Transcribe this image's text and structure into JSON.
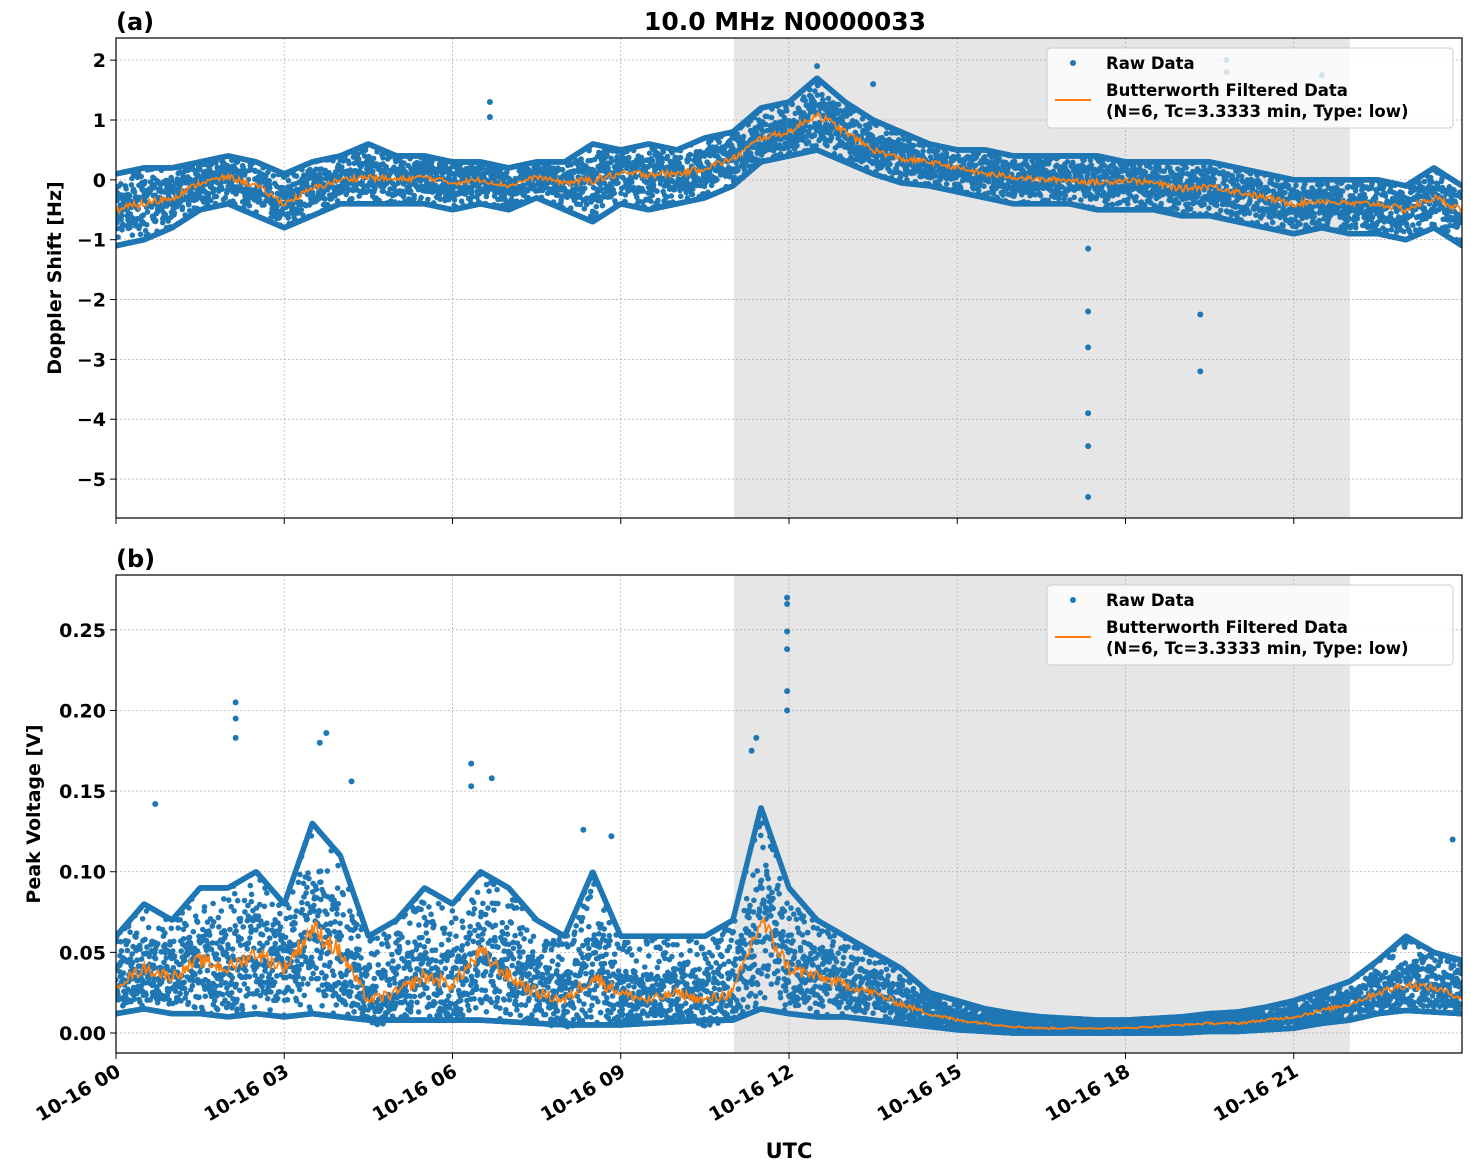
{
  "title": "10.0 MHz N0000033",
  "colors": {
    "raw": "#1f77b4",
    "filtered": "#ff7f0e",
    "shade": "#e6e6e6",
    "grid": "#b0b0b0"
  },
  "legend": {
    "placement": "upper-right",
    "raw": "Raw Data",
    "filtered_line1": "Butterworth Filtered Data",
    "filtered_line2": "(N=6, Tc=3.3333 min, Type: low)"
  },
  "xlabel": "UTC",
  "x_ticks": [
    "10-16 00",
    "10-16 03",
    "10-16 06",
    "10-16 09",
    "10-16 12",
    "10-16 15",
    "10-16 18",
    "10-16 21"
  ],
  "chart_data": [
    {
      "type": "scatter",
      "panel_label": "(a)",
      "ylabel": "Doppler Shift [Hz]",
      "xlim": [
        "10-16 00:00",
        "10-17 00:00"
      ],
      "ylim": [
        -5.65,
        2.37
      ],
      "y_ticks": [
        "2",
        "1",
        "0",
        "−1",
        "−2",
        "−3",
        "−4",
        "−5"
      ],
      "y_tick_values": [
        2,
        1,
        0,
        -1,
        -2,
        -3,
        -4,
        -5
      ],
      "grid": true,
      "shaded_span": [
        "10-16 11:01",
        "10-16 22:00"
      ],
      "x": [
        "00:00",
        "00:30",
        "01:00",
        "01:30",
        "02:00",
        "02:30",
        "03:00",
        "03:30",
        "04:00",
        "04:30",
        "05:00",
        "05:30",
        "06:00",
        "06:30",
        "07:00",
        "07:30",
        "08:00",
        "08:30",
        "09:00",
        "09:30",
        "10:00",
        "10:30",
        "11:00",
        "11:30",
        "12:00",
        "12:30",
        "13:00",
        "13:30",
        "14:00",
        "14:30",
        "15:00",
        "15:30",
        "16:00",
        "16:30",
        "17:00",
        "17:30",
        "18:00",
        "18:30",
        "19:00",
        "19:30",
        "20:00",
        "20:30",
        "21:00",
        "21:30",
        "22:00",
        "22:30",
        "23:00",
        "23:30",
        "24:00"
      ],
      "series": [
        {
          "name": "Butterworth Filtered Data",
          "kind": "line",
          "values": [
            -0.5,
            -0.4,
            -0.3,
            -0.05,
            0.05,
            -0.1,
            -0.4,
            -0.15,
            0.0,
            0.05,
            0.0,
            0.05,
            -0.05,
            0.0,
            -0.1,
            0.05,
            -0.05,
            0.0,
            0.1,
            0.1,
            0.1,
            0.2,
            0.35,
            0.7,
            0.8,
            1.1,
            0.8,
            0.5,
            0.35,
            0.3,
            0.2,
            0.1,
            0.05,
            0.0,
            0.0,
            -0.05,
            0.0,
            -0.05,
            -0.15,
            -0.1,
            -0.2,
            -0.3,
            -0.4,
            -0.35,
            -0.4,
            -0.4,
            -0.5,
            -0.3,
            -0.5
          ]
        },
        {
          "name": "Raw Data",
          "kind": "scatter-envelope",
          "lower": [
            -1.1,
            -1.0,
            -0.8,
            -0.5,
            -0.4,
            -0.6,
            -0.8,
            -0.6,
            -0.4,
            -0.4,
            -0.4,
            -0.4,
            -0.5,
            -0.4,
            -0.5,
            -0.3,
            -0.5,
            -0.7,
            -0.4,
            -0.5,
            -0.4,
            -0.3,
            -0.1,
            0.3,
            0.4,
            0.5,
            0.3,
            0.1,
            -0.05,
            -0.1,
            -0.2,
            -0.3,
            -0.4,
            -0.4,
            -0.4,
            -0.5,
            -0.5,
            -0.5,
            -0.6,
            -0.6,
            -0.7,
            -0.8,
            -0.9,
            -0.8,
            -0.9,
            -0.9,
            -1.0,
            -0.8,
            -1.1
          ],
          "upper": [
            0.1,
            0.2,
            0.2,
            0.3,
            0.4,
            0.3,
            0.1,
            0.3,
            0.4,
            0.6,
            0.4,
            0.4,
            0.3,
            0.3,
            0.2,
            0.3,
            0.3,
            0.6,
            0.5,
            0.6,
            0.5,
            0.7,
            0.8,
            1.2,
            1.3,
            1.7,
            1.3,
            1.0,
            0.8,
            0.6,
            0.5,
            0.5,
            0.4,
            0.4,
            0.4,
            0.4,
            0.3,
            0.3,
            0.3,
            0.3,
            0.2,
            0.1,
            0.0,
            0.0,
            0.0,
            0.0,
            -0.1,
            0.2,
            -0.1
          ],
          "outliers": [
            [
              "17:20",
              -1.15
            ],
            [
              "17:20",
              -2.2
            ],
            [
              "17:20",
              -2.8
            ],
            [
              "17:20",
              -3.9
            ],
            [
              "17:20",
              -4.45
            ],
            [
              "17:20",
              -5.3
            ],
            [
              "19:20",
              -2.25
            ],
            [
              "19:20",
              -3.2
            ],
            [
              "19:48",
              2.0
            ],
            [
              "19:48",
              1.8
            ],
            [
              "21:30",
              1.75
            ],
            [
              "06:40",
              1.3
            ],
            [
              "06:40",
              1.05
            ],
            [
              "12:30",
              1.9
            ],
            [
              "13:30",
              1.6
            ]
          ]
        }
      ]
    },
    {
      "type": "scatter",
      "panel_label": "(b)",
      "ylabel": "Peak Voltage [V]",
      "xlim": [
        "10-16 00:00",
        "10-17 00:00"
      ],
      "ylim": [
        -0.0124,
        0.284
      ],
      "y_ticks": [
        "0.25",
        "0.20",
        "0.15",
        "0.10",
        "0.05",
        "0.00"
      ],
      "y_tick_values": [
        0.25,
        0.2,
        0.15,
        0.1,
        0.05,
        0.0
      ],
      "grid": true,
      "shaded_span": [
        "10-16 11:01",
        "10-16 22:00"
      ],
      "x": [
        "00:00",
        "00:30",
        "01:00",
        "01:30",
        "02:00",
        "02:30",
        "03:00",
        "03:30",
        "04:00",
        "04:30",
        "05:00",
        "05:30",
        "06:00",
        "06:30",
        "07:00",
        "07:30",
        "08:00",
        "08:30",
        "09:00",
        "09:30",
        "10:00",
        "10:30",
        "11:00",
        "11:30",
        "12:00",
        "12:30",
        "13:00",
        "13:30",
        "14:00",
        "14:30",
        "15:00",
        "15:30",
        "16:00",
        "16:30",
        "17:00",
        "17:30",
        "18:00",
        "18:30",
        "19:00",
        "19:30",
        "20:00",
        "20:30",
        "21:00",
        "21:30",
        "22:00",
        "22:30",
        "23:00",
        "23:30",
        "24:00"
      ],
      "series": [
        {
          "name": "Butterworth Filtered Data",
          "kind": "line",
          "values": [
            0.03,
            0.04,
            0.035,
            0.045,
            0.04,
            0.05,
            0.04,
            0.065,
            0.05,
            0.02,
            0.025,
            0.035,
            0.03,
            0.05,
            0.035,
            0.025,
            0.02,
            0.035,
            0.025,
            0.02,
            0.025,
            0.02,
            0.025,
            0.07,
            0.04,
            0.035,
            0.03,
            0.025,
            0.018,
            0.012,
            0.008,
            0.006,
            0.004,
            0.003,
            0.003,
            0.003,
            0.003,
            0.004,
            0.005,
            0.006,
            0.006,
            0.008,
            0.01,
            0.014,
            0.018,
            0.025,
            0.03,
            0.028,
            0.022
          ]
        },
        {
          "name": "Raw Data",
          "kind": "scatter-envelope",
          "lower": [
            0.012,
            0.015,
            0.012,
            0.012,
            0.01,
            0.012,
            0.01,
            0.012,
            0.01,
            0.008,
            0.008,
            0.008,
            0.008,
            0.008,
            0.007,
            0.006,
            0.005,
            0.005,
            0.005,
            0.006,
            0.007,
            0.008,
            0.008,
            0.015,
            0.012,
            0.01,
            0.01,
            0.008,
            0.006,
            0.004,
            0.002,
            0.001,
            0.0,
            0.0,
            0.0,
            0.0,
            0.0,
            0.0,
            0.0,
            0.001,
            0.001,
            0.002,
            0.003,
            0.006,
            0.008,
            0.012,
            0.014,
            0.013,
            0.012
          ],
          "upper": [
            0.06,
            0.08,
            0.07,
            0.09,
            0.09,
            0.1,
            0.08,
            0.13,
            0.11,
            0.06,
            0.07,
            0.09,
            0.08,
            0.1,
            0.09,
            0.07,
            0.06,
            0.1,
            0.06,
            0.06,
            0.06,
            0.06,
            0.07,
            0.14,
            0.09,
            0.07,
            0.06,
            0.05,
            0.04,
            0.025,
            0.02,
            0.015,
            0.012,
            0.01,
            0.009,
            0.008,
            0.008,
            0.009,
            0.01,
            0.012,
            0.013,
            0.016,
            0.02,
            0.026,
            0.032,
            0.045,
            0.06,
            0.05,
            0.045
          ],
          "outliers": [
            [
              "00:42",
              0.142
            ],
            [
              "02:08",
              0.205
            ],
            [
              "02:08",
              0.195
            ],
            [
              "02:08",
              0.183
            ],
            [
              "03:38",
              0.18
            ],
            [
              "03:45",
              0.186
            ],
            [
              "04:12",
              0.156
            ],
            [
              "06:20",
              0.167
            ],
            [
              "06:20",
              0.153
            ],
            [
              "06:42",
              0.158
            ],
            [
              "08:20",
              0.126
            ],
            [
              "08:50",
              0.122
            ],
            [
              "11:25",
              0.183
            ],
            [
              "11:20",
              0.175
            ],
            [
              "11:58",
              0.27
            ],
            [
              "11:58",
              0.266
            ],
            [
              "11:58",
              0.249
            ],
            [
              "11:58",
              0.238
            ],
            [
              "11:58",
              0.212
            ],
            [
              "11:58",
              0.2
            ],
            [
              "23:50",
              0.12
            ]
          ]
        }
      ]
    }
  ]
}
